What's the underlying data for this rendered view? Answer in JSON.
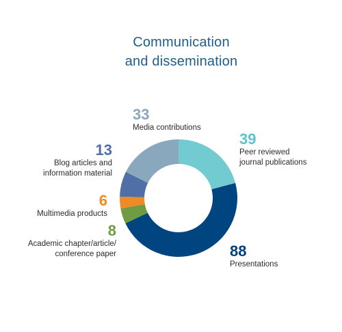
{
  "chart_data": {
    "type": "pie",
    "donut": true,
    "title_lines": [
      "Communication",
      "and dissemination"
    ],
    "slices": [
      {
        "label": "Peer reviewed\njournal publications",
        "value": 39,
        "color": "#73cbd2"
      },
      {
        "label": "Presentations",
        "value": 88,
        "color": "#00457f"
      },
      {
        "label": "Academic chapter/article/\nconference paper",
        "value": 8,
        "color": "#6f9c42"
      },
      {
        "label": "Multimedia products",
        "value": 6,
        "color": "#f08a24"
      },
      {
        "label": "Blog articles and\ninformation material",
        "value": 13,
        "color": "#4f6fa6"
      },
      {
        "label": "Media contributions",
        "value": 33,
        "color": "#8aa8bd"
      }
    ],
    "value_colors": [
      "#5cc3cc",
      "#003f7a",
      "#6f9c42",
      "#f08a24",
      "#4f6fa6",
      "#8aa8bd"
    ]
  }
}
